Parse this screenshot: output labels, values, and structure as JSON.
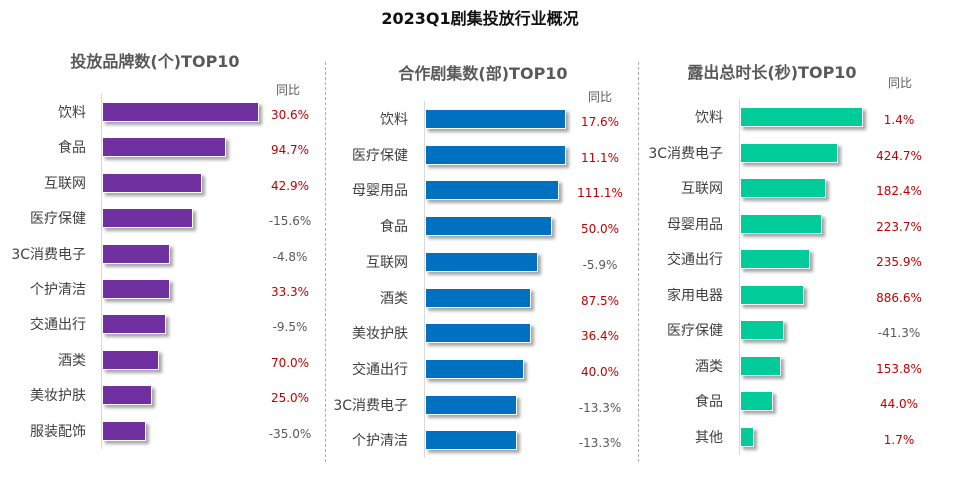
{
  "title": "2023Q1剧集投放行业概况",
  "colors": {
    "positive": "#c00000",
    "negative": "#595959"
  },
  "chart_data": [
    {
      "type": "bar",
      "orientation": "horizontal",
      "title": "投放品牌数(个)TOP10",
      "yoy_header": "同比",
      "color": "#7030a0",
      "categories": [
        "饮料",
        "食品",
        "互联网",
        "医疗保健",
        "3C消费电子",
        "个护清洁",
        "交通出行",
        "酒类",
        "美妆护肤",
        "服装配饰"
      ],
      "values_relative_to_max": [
        100,
        79,
        64,
        58,
        43,
        43,
        41,
        36,
        32,
        28
      ],
      "yoy": [
        "30.6%",
        "94.7%",
        "42.9%",
        "-15.6%",
        "-4.8%",
        "33.3%",
        "-9.5%",
        "70.0%",
        "25.0%",
        "-35.0%"
      ]
    },
    {
      "type": "bar",
      "orientation": "horizontal",
      "title": "合作剧集数(部)TOP10",
      "yoy_header": "同比",
      "color": "#0070c0",
      "categories": [
        "饮料",
        "医疗保健",
        "母婴用品",
        "食品",
        "互联网",
        "酒类",
        "美妆护肤",
        "交通出行",
        "3C消费电子",
        "个护清洁"
      ],
      "values_relative_to_max": [
        100,
        100,
        95,
        90,
        80,
        75,
        75,
        70,
        65,
        65
      ],
      "yoy": [
        "17.6%",
        "11.1%",
        "111.1%",
        "50.0%",
        "-5.9%",
        "87.5%",
        "36.4%",
        "40.0%",
        "-13.3%",
        "-13.3%"
      ]
    },
    {
      "type": "bar",
      "orientation": "horizontal",
      "title": "露出总时长(秒)TOP10",
      "yoy_header": "同比",
      "color": "#00cc99",
      "categories": [
        "饮料",
        "3C消费电子",
        "互联网",
        "母婴用品",
        "交通出行",
        "家用电器",
        "医疗保健",
        "酒类",
        "食品",
        "其他"
      ],
      "values_relative_to_max": [
        100,
        80,
        70,
        67,
        57,
        52,
        36,
        33,
        27,
        11
      ],
      "yoy": [
        "1.4%",
        "424.7%",
        "182.4%",
        "223.7%",
        "235.9%",
        "886.6%",
        "-41.3%",
        "153.8%",
        "44.0%",
        "1.7%"
      ]
    }
  ]
}
